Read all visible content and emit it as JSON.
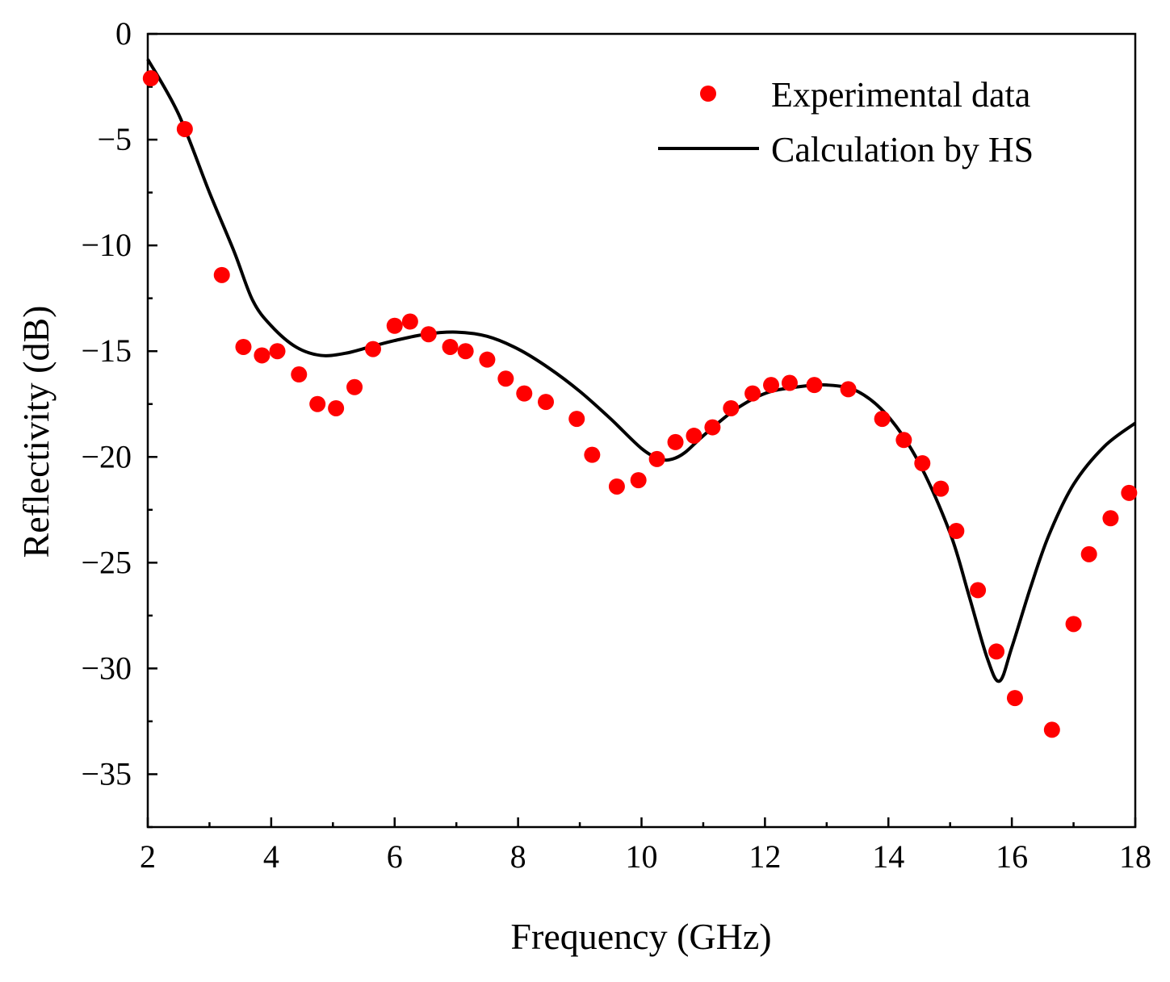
{
  "chart_data": {
    "type": "scatter",
    "title": "",
    "xlabel": "Frequency (GHz)",
    "ylabel": "Reflectivity (dB)",
    "xlim": [
      2,
      18
    ],
    "ylim": [
      -37.5,
      0
    ],
    "x_ticks": [
      2,
      4,
      6,
      8,
      10,
      12,
      14,
      16,
      18
    ],
    "x_tick_labels": [
      "2",
      "4",
      "6",
      "8",
      "10",
      "12",
      "14",
      "16",
      "18"
    ],
    "y_ticks": [
      0,
      -5,
      -10,
      -15,
      -20,
      -25,
      -30,
      -35
    ],
    "y_tick_labels": [
      "0",
      "−5",
      "−10",
      "−15",
      "−20",
      "−25",
      "−30",
      "−35"
    ],
    "legend_position": "top-right",
    "series": [
      {
        "name": "Experimental data",
        "kind": "points",
        "color": "#ff0000",
        "x": [
          2.05,
          2.6,
          3.2,
          3.55,
          3.85,
          4.1,
          4.45,
          4.75,
          5.05,
          5.35,
          5.65,
          6.0,
          6.25,
          6.55,
          6.9,
          7.15,
          7.5,
          7.8,
          8.1,
          8.45,
          8.95,
          9.2,
          9.6,
          9.95,
          10.25,
          10.55,
          10.85,
          11.15,
          11.45,
          11.8,
          12.1,
          12.4,
          12.8,
          13.35,
          13.9,
          14.25,
          14.55,
          14.85,
          15.1,
          15.45,
          15.75,
          16.05,
          16.65,
          17.0,
          17.25,
          17.6,
          17.9
        ],
        "y": [
          -2.1,
          -4.5,
          -11.4,
          -14.8,
          -15.2,
          -15.0,
          -16.1,
          -17.5,
          -17.7,
          -16.7,
          -14.9,
          -13.8,
          -13.6,
          -14.2,
          -14.8,
          -15.0,
          -15.4,
          -16.3,
          -17.0,
          -17.4,
          -18.2,
          -19.9,
          -21.4,
          -21.1,
          -20.1,
          -19.3,
          -19.0,
          -18.6,
          -17.7,
          -17.0,
          -16.6,
          -16.5,
          -16.6,
          -16.8,
          -18.2,
          -19.2,
          -20.3,
          -21.5,
          -23.5,
          -26.3,
          -29.2,
          -31.4,
          -32.9,
          -27.9,
          -24.6,
          -22.9,
          -21.7
        ]
      },
      {
        "name": "Calculation by HS",
        "kind": "line",
        "color": "#000000",
        "x": [
          2.0,
          2.5,
          3.0,
          3.4,
          3.7,
          4.0,
          4.4,
          4.8,
          5.2,
          5.6,
          6.0,
          6.5,
          7.0,
          7.5,
          8.0,
          8.5,
          9.0,
          9.5,
          10.0,
          10.3,
          10.5,
          10.7,
          11.0,
          11.5,
          12.0,
          12.5,
          13.0,
          13.5,
          14.0,
          14.5,
          15.0,
          15.3,
          15.6,
          15.8,
          16.0,
          16.3,
          16.6,
          17.0,
          17.5,
          18.0
        ],
        "y": [
          -1.2,
          -3.8,
          -7.5,
          -10.3,
          -12.6,
          -13.8,
          -14.8,
          -15.2,
          -15.1,
          -14.8,
          -14.5,
          -14.2,
          -14.1,
          -14.3,
          -14.9,
          -15.8,
          -16.9,
          -18.2,
          -19.6,
          -20.1,
          -20.1,
          -19.8,
          -19.0,
          -17.8,
          -17.0,
          -16.7,
          -16.6,
          -16.9,
          -18.1,
          -20.3,
          -23.6,
          -26.5,
          -29.5,
          -30.6,
          -29.0,
          -26.2,
          -23.7,
          -21.3,
          -19.5,
          -18.4
        ]
      }
    ]
  }
}
